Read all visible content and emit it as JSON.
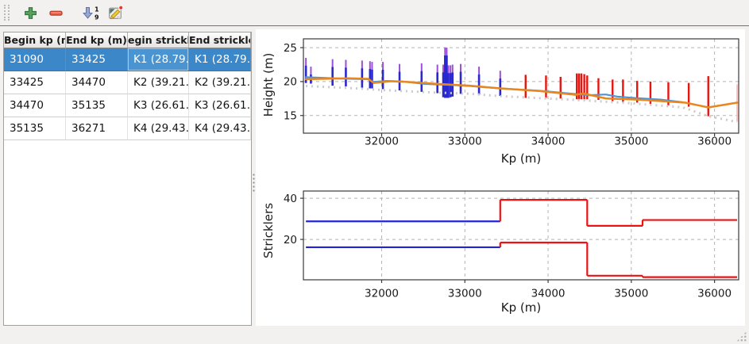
{
  "toolbar": {
    "buttons": [
      {
        "name": "add",
        "icon": "plus-icon"
      },
      {
        "name": "remove",
        "icon": "minus-icon"
      },
      {
        "name": "sort",
        "icon": "sort-numeric-icon"
      },
      {
        "name": "edit",
        "icon": "edit-pencil-icon"
      }
    ],
    "sort_digits": [
      "1",
      "9"
    ]
  },
  "table": {
    "headers": [
      "Begin kp (m)",
      "End kp (m)",
      "egin strickle",
      "End strickler"
    ],
    "rows": [
      {
        "cells": [
          "31090",
          "33425",
          "K1 (28.79…",
          "K1 (28.79…"
        ],
        "selected": true
      },
      {
        "cells": [
          "33425",
          "34470",
          "K2 (39.21…",
          "K2 (39.21…"
        ],
        "selected": false
      },
      {
        "cells": [
          "34470",
          "35135",
          "K3 (26.61…",
          "K3 (26.61…"
        ],
        "selected": false
      },
      {
        "cells": [
          "35135",
          "36271",
          "K4 (29.43…",
          "K4 (29.43…"
        ],
        "selected": false
      }
    ],
    "selection_color": "#3b87c8",
    "selected_row_index": 0,
    "focused_cell_column": 2
  },
  "chart_data": [
    {
      "type": "line",
      "name": "height-profile-chart",
      "title": "",
      "xlabel": "Kp (m)",
      "ylabel": "Height (m)",
      "xlim": [
        31060,
        36290
      ],
      "ylim": [
        12.4,
        26.3
      ],
      "xticks": [
        32000,
        33000,
        34000,
        35000,
        36000
      ],
      "yticks": [
        15,
        20,
        25
      ],
      "grid": true,
      "colors": {
        "section_selected": "#2a28cf",
        "section_tip": "#9a50d8",
        "section_other": "#e8150f",
        "section_faint": "#ffc4c4",
        "waterline_blue": "#4f94d4",
        "waterline_orange": "#e8871e",
        "ground_dotted": "#cbcbcb"
      },
      "cross_sections": {
        "selected_blue": [
          [
            31090,
            19.8,
            23.5
          ],
          [
            31150,
            19.7,
            22.2
          ],
          [
            31410,
            19.4,
            23.3
          ],
          [
            31570,
            19.3,
            23.2
          ],
          [
            31765,
            19.1,
            23.1
          ],
          [
            31860,
            19.0,
            23.0
          ],
          [
            31885,
            19.0,
            22.9
          ],
          [
            32015,
            18.9,
            22.9
          ],
          [
            32215,
            18.7,
            22.6
          ],
          [
            32480,
            18.5,
            22.7
          ],
          [
            32670,
            18.3,
            22.5
          ],
          [
            32740,
            17.7,
            22.5
          ],
          [
            32762,
            17.6,
            25.0
          ],
          [
            32782,
            17.6,
            25.0
          ],
          [
            32802,
            17.6,
            22.4
          ],
          [
            32827,
            17.7,
            22.4
          ],
          [
            32852,
            17.8,
            22.5
          ],
          [
            32950,
            18.2,
            22.6
          ],
          [
            33170,
            18.1,
            22.2
          ],
          [
            33425,
            17.9,
            21.6
          ]
        ],
        "other_red": [
          [
            33730,
            17.6,
            21.0
          ],
          [
            33975,
            17.6,
            20.9
          ],
          [
            34150,
            17.5,
            20.7
          ],
          [
            34345,
            17.4,
            21.2
          ],
          [
            34372,
            17.4,
            21.2
          ],
          [
            34400,
            17.4,
            21.2
          ],
          [
            34435,
            17.4,
            21.1
          ],
          [
            34470,
            17.4,
            20.9
          ],
          [
            34605,
            17.3,
            20.5
          ],
          [
            34775,
            17.1,
            20.3
          ],
          [
            34900,
            17.0,
            20.3
          ],
          [
            35070,
            16.9,
            20.1
          ],
          [
            35230,
            16.7,
            20.0
          ],
          [
            35445,
            16.5,
            19.9
          ],
          [
            35690,
            16.3,
            19.8
          ],
          [
            35925,
            14.9,
            20.8
          ]
        ],
        "faint": [
          [
            36271,
            14.1,
            19.6
          ]
        ]
      },
      "series": [
        {
          "name": "water-line-blue",
          "color": "#4f94d4",
          "width": 2.2,
          "dash": "",
          "points": [
            [
              31090,
              20.65
            ],
            [
              31500,
              20.45
            ],
            [
              31830,
              20.35
            ],
            [
              31905,
              19.95
            ],
            [
              32060,
              20.1
            ],
            [
              32260,
              20.0
            ],
            [
              32520,
              19.65
            ],
            [
              32820,
              19.5
            ],
            [
              33060,
              19.35
            ],
            [
              33425,
              19.0
            ],
            [
              33900,
              18.65
            ],
            [
              34300,
              18.2
            ],
            [
              34500,
              18.0
            ],
            [
              34690,
              18.1
            ],
            [
              34830,
              17.8
            ],
            [
              35070,
              17.55
            ],
            [
              35350,
              17.35
            ],
            [
              35620,
              16.95
            ]
          ]
        },
        {
          "name": "water-line-orange",
          "color": "#e8871e",
          "width": 2.5,
          "dash": "",
          "points": [
            [
              31090,
              20.35
            ],
            [
              31600,
              20.5
            ],
            [
              31840,
              20.4
            ],
            [
              31905,
              19.8
            ],
            [
              32110,
              20.05
            ],
            [
              32310,
              19.95
            ],
            [
              32620,
              19.7
            ],
            [
              33060,
              19.4
            ],
            [
              33425,
              19.0
            ],
            [
              33900,
              18.6
            ],
            [
              34330,
              18.05
            ],
            [
              34420,
              18.25
            ],
            [
              34700,
              17.5
            ],
            [
              35070,
              17.35
            ],
            [
              35650,
              16.9
            ],
            [
              35925,
              16.2
            ],
            [
              36271,
              16.9
            ]
          ]
        },
        {
          "name": "ground-line-dotted",
          "color": "#cbcbcb",
          "width": 3,
          "dash": "2 5",
          "points": [
            [
              31090,
              19.35
            ],
            [
              31700,
              19.0
            ],
            [
              32000,
              18.75
            ],
            [
              32600,
              18.4
            ],
            [
              33060,
              18.2
            ],
            [
              33430,
              17.85
            ],
            [
              34000,
              17.5
            ],
            [
              34470,
              17.2
            ],
            [
              35000,
              16.8
            ],
            [
              35620,
              16.2
            ],
            [
              35925,
              14.9
            ],
            [
              36271,
              14.05
            ]
          ]
        }
      ]
    },
    {
      "type": "step",
      "name": "stricklers-chart",
      "title": "",
      "xlabel": "Kp (m)",
      "ylabel": "Stricklers",
      "xlim": [
        31060,
        36290
      ],
      "ylim": [
        0.4,
        43.5
      ],
      "xticks": [
        32000,
        33000,
        34000,
        35000,
        36000
      ],
      "yticks": [
        20,
        40
      ],
      "grid": true,
      "zones": [
        {
          "begin_kp": 31090,
          "end_kp": 33425,
          "upper": 28.79,
          "lower": 16.2,
          "color": "#2323d7"
        },
        {
          "begin_kp": 33425,
          "end_kp": 34470,
          "upper": 39.21,
          "lower": 18.5,
          "color": "#ee1111"
        },
        {
          "begin_kp": 34470,
          "end_kp": 35135,
          "upper": 26.61,
          "lower": 2.4,
          "color": "#ee1111"
        },
        {
          "begin_kp": 35135,
          "end_kp": 36271,
          "upper": 29.43,
          "lower": 1.7,
          "color": "#ee1111"
        }
      ]
    }
  ]
}
